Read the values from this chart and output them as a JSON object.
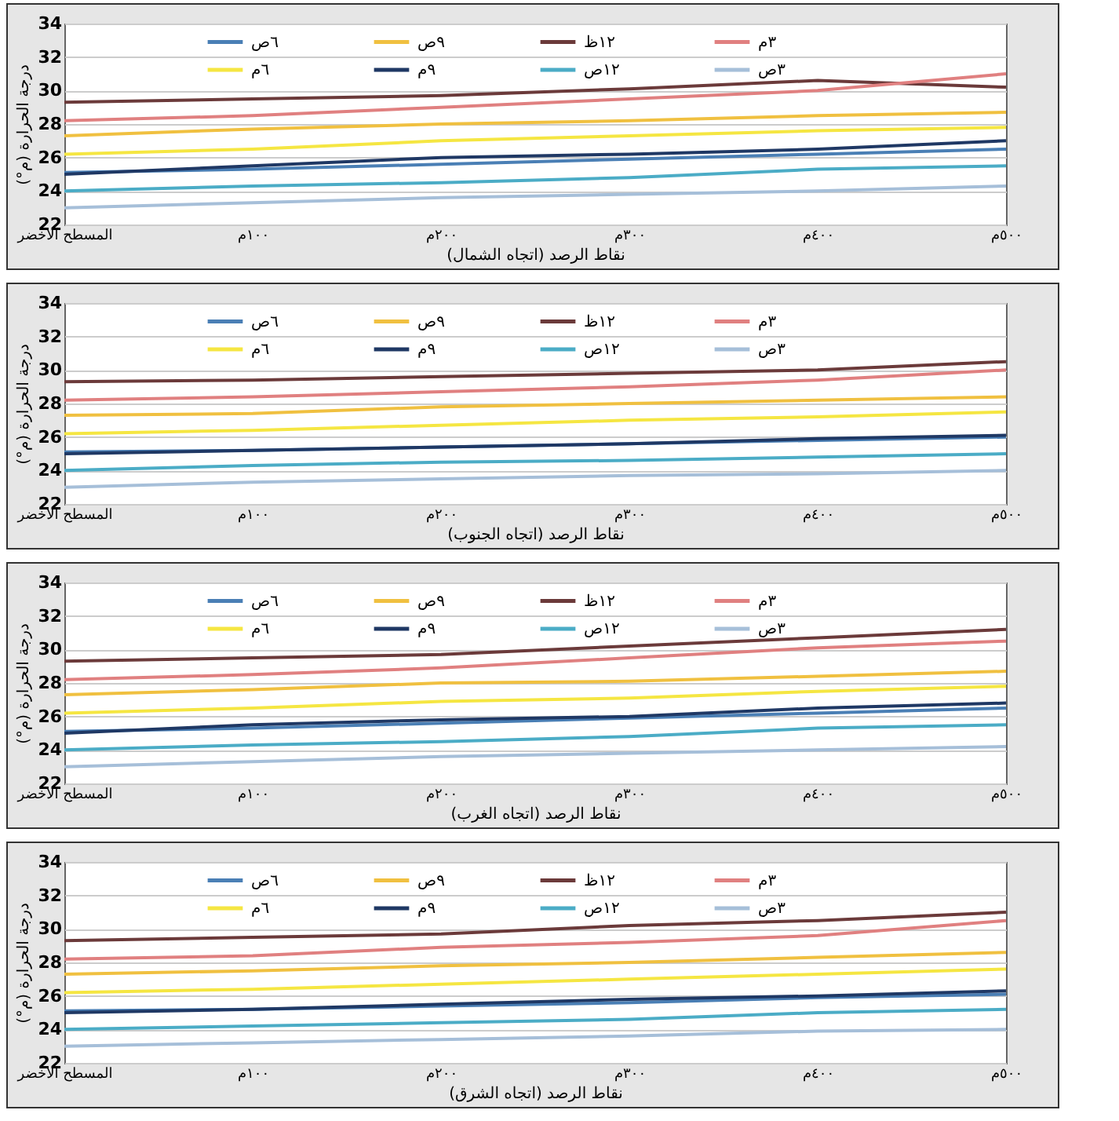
{
  "chart_data": [
    {
      "type": "line",
      "xlabel": "نقاط الرصد (اتجاه الشمال)",
      "ylabel": "درجة الحرارة (م°)",
      "categories": [
        "المسطح الاخضر",
        "١٠٠م",
        "٢٠٠م",
        "٣٠٠م",
        "٤٠٠م",
        "٥٠٠م"
      ],
      "ylim": [
        22,
        34
      ],
      "yticks": [
        22,
        24,
        26,
        28,
        30,
        32,
        34
      ],
      "grid": "y",
      "legend": "top",
      "marker": "none",
      "line_style": "solid",
      "series": [
        {
          "name": "٦ص",
          "color": "#4a7fb5",
          "values": [
            25.1,
            25.3,
            25.6,
            25.9,
            26.2,
            26.5
          ]
        },
        {
          "name": "٩ص",
          "color": "#f0c040",
          "values": [
            27.3,
            27.7,
            28.0,
            28.2,
            28.5,
            28.7
          ]
        },
        {
          "name": "١٢ظ",
          "color": "#6b3a3a",
          "values": [
            29.3,
            29.5,
            29.7,
            30.1,
            30.6,
            30.2
          ]
        },
        {
          "name": "٣م",
          "color": "#e08080",
          "values": [
            28.2,
            28.5,
            29.0,
            29.5,
            30.0,
            31.0
          ]
        },
        {
          "name": "٦م",
          "color": "#f5e642",
          "values": [
            26.2,
            26.5,
            27.0,
            27.3,
            27.6,
            27.8
          ]
        },
        {
          "name": "٩م",
          "color": "#1f3864",
          "values": [
            25.0,
            25.5,
            26.0,
            26.2,
            26.5,
            27.0
          ]
        },
        {
          "name": "١٢ص",
          "color": "#4bacc6",
          "values": [
            24.0,
            24.3,
            24.5,
            24.8,
            25.3,
            25.5
          ]
        },
        {
          "name": "٣ص",
          "color": "#a6bfd9",
          "values": [
            23.0,
            23.3,
            23.6,
            23.8,
            24.0,
            24.3
          ]
        }
      ]
    },
    {
      "type": "line",
      "xlabel": "نقاط الرصد (اتجاه الجنوب)",
      "ylabel": "درجة الحرارة (م°)",
      "categories": [
        "المسطح الاخضر",
        "١٠٠م",
        "٢٠٠م",
        "٣٠٠م",
        "٤٠٠م",
        "٥٠٠م"
      ],
      "ylim": [
        22,
        34
      ],
      "yticks": [
        22,
        24,
        26,
        28,
        30,
        32,
        34
      ],
      "grid": "y",
      "legend": "top",
      "marker": "none",
      "line_style": "solid",
      "series": [
        {
          "name": "٦ص",
          "color": "#4a7fb5",
          "values": [
            25.1,
            25.2,
            25.4,
            25.6,
            25.8,
            26.0
          ]
        },
        {
          "name": "٩ص",
          "color": "#f0c040",
          "values": [
            27.3,
            27.4,
            27.8,
            28.0,
            28.2,
            28.4
          ]
        },
        {
          "name": "١٢ظ",
          "color": "#6b3a3a",
          "values": [
            29.3,
            29.4,
            29.6,
            29.8,
            30.0,
            30.5
          ]
        },
        {
          "name": "٣م",
          "color": "#e08080",
          "values": [
            28.2,
            28.4,
            28.7,
            29.0,
            29.4,
            30.0
          ]
        },
        {
          "name": "٦م",
          "color": "#f5e642",
          "values": [
            26.2,
            26.4,
            26.7,
            27.0,
            27.2,
            27.5
          ]
        },
        {
          "name": "٩م",
          "color": "#1f3864",
          "values": [
            25.0,
            25.2,
            25.4,
            25.6,
            25.9,
            26.1
          ]
        },
        {
          "name": "١٢ص",
          "color": "#4bacc6",
          "values": [
            24.0,
            24.3,
            24.5,
            24.6,
            24.8,
            25.0
          ]
        },
        {
          "name": "٣ص",
          "color": "#a6bfd9",
          "values": [
            23.0,
            23.3,
            23.5,
            23.7,
            23.8,
            24.0
          ]
        }
      ]
    },
    {
      "type": "line",
      "xlabel": "نقاط الرصد (اتجاه الغرب)",
      "ylabel": "درجة الحرارة (م°)",
      "categories": [
        "المسطح الاخضر",
        "١٠٠م",
        "٢٠٠م",
        "٣٠٠م",
        "٤٠٠م",
        "٥٠٠م"
      ],
      "ylim": [
        22,
        34
      ],
      "yticks": [
        22,
        24,
        26,
        28,
        30,
        32,
        34
      ],
      "grid": "y",
      "legend": "top",
      "marker": "none",
      "line_style": "solid",
      "series": [
        {
          "name": "٦ص",
          "color": "#4a7fb5",
          "values": [
            25.1,
            25.3,
            25.6,
            25.9,
            26.2,
            26.5
          ]
        },
        {
          "name": "٩ص",
          "color": "#f0c040",
          "values": [
            27.3,
            27.6,
            28.0,
            28.1,
            28.4,
            28.7
          ]
        },
        {
          "name": "١٢ظ",
          "color": "#6b3a3a",
          "values": [
            29.3,
            29.5,
            29.7,
            30.2,
            30.7,
            31.2
          ]
        },
        {
          "name": "٣م",
          "color": "#e08080",
          "values": [
            28.2,
            28.5,
            28.9,
            29.5,
            30.1,
            30.5
          ]
        },
        {
          "name": "٦م",
          "color": "#f5e642",
          "values": [
            26.2,
            26.5,
            26.9,
            27.1,
            27.5,
            27.8
          ]
        },
        {
          "name": "٩م",
          "color": "#1f3864",
          "values": [
            25.0,
            25.5,
            25.8,
            26.0,
            26.5,
            26.8
          ]
        },
        {
          "name": "١٢ص",
          "color": "#4bacc6",
          "values": [
            24.0,
            24.3,
            24.5,
            24.8,
            25.3,
            25.5
          ]
        },
        {
          "name": "٣ص",
          "color": "#a6bfd9",
          "values": [
            23.0,
            23.3,
            23.6,
            23.8,
            24.0,
            24.2
          ]
        }
      ]
    },
    {
      "type": "line",
      "xlabel": "نقاط الرصد (اتجاه الشرق)",
      "ylabel": "درجة الحرارة (م°)",
      "categories": [
        "المسطح الاخضر",
        "١٠٠م",
        "٢٠٠م",
        "٣٠٠م",
        "٤٠٠م",
        "٥٠٠م"
      ],
      "ylim": [
        22,
        34
      ],
      "yticks": [
        22,
        24,
        26,
        28,
        30,
        32,
        34
      ],
      "grid": "y",
      "legend": "top",
      "marker": "none",
      "line_style": "solid",
      "series": [
        {
          "name": "٦ص",
          "color": "#4a7fb5",
          "values": [
            25.1,
            25.2,
            25.4,
            25.6,
            25.9,
            26.1
          ]
        },
        {
          "name": "٩ص",
          "color": "#f0c040",
          "values": [
            27.3,
            27.5,
            27.8,
            28.0,
            28.3,
            28.6
          ]
        },
        {
          "name": "١٢ظ",
          "color": "#6b3a3a",
          "values": [
            29.3,
            29.5,
            29.7,
            30.2,
            30.5,
            31.0
          ]
        },
        {
          "name": "٣م",
          "color": "#e08080",
          "values": [
            28.2,
            28.4,
            28.9,
            29.2,
            29.6,
            30.5
          ]
        },
        {
          "name": "٦م",
          "color": "#f5e642",
          "values": [
            26.2,
            26.4,
            26.7,
            27.0,
            27.3,
            27.6
          ]
        },
        {
          "name": "٩م",
          "color": "#1f3864",
          "values": [
            25.0,
            25.2,
            25.5,
            25.8,
            26.0,
            26.3
          ]
        },
        {
          "name": "١٢ص",
          "color": "#4bacc6",
          "values": [
            24.0,
            24.2,
            24.4,
            24.6,
            25.0,
            25.2
          ]
        },
        {
          "name": "٣ص",
          "color": "#a6bfd9",
          "values": [
            23.0,
            23.2,
            23.4,
            23.6,
            23.9,
            24.0
          ]
        }
      ]
    }
  ]
}
